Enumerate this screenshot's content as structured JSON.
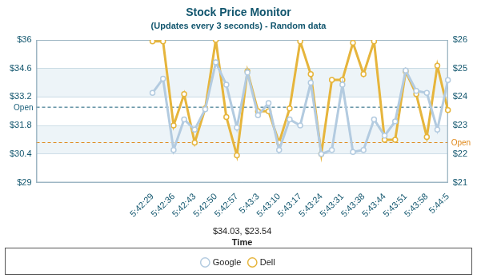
{
  "chart_data": {
    "type": "line",
    "title": "Stock Price Monitor",
    "subtitle": "(Updates every 3 seconds) - Random data",
    "x_label": "Time",
    "categories": [
      null,
      null,
      null,
      null,
      null,
      null,
      null,
      null,
      null,
      null,
      null,
      "5:42:29",
      null,
      "5:42:36",
      null,
      "5:42:43",
      null,
      "5:42:50",
      null,
      "5:42:57",
      null,
      "5:43:3",
      null,
      "5:43:10",
      null,
      "5:43:17",
      null,
      "5:43:24",
      null,
      "5:43:31",
      null,
      "5:43:38",
      null,
      "5:43:44",
      null,
      "5:43:51",
      null,
      "5:43:58",
      null,
      "5:44:5"
    ],
    "series": [
      {
        "name": "Google",
        "color": "#b3cbe0",
        "marker": "circle",
        "values": [
          null,
          null,
          null,
          null,
          null,
          null,
          null,
          null,
          null,
          null,
          null,
          33.4,
          34.1,
          30.6,
          32.1,
          31.6,
          32.6,
          34.9,
          33.8,
          31.7,
          34.4,
          32.3,
          32.9,
          30.6,
          32.1,
          31.8,
          33.9,
          30.4,
          30.6,
          33.8,
          30.5,
          30.6,
          32.1,
          31.3,
          32.0,
          34.5,
          33.5,
          33.4,
          31.6,
          34.03
        ]
      },
      {
        "name": "Dell",
        "color": "#e6b53c",
        "marker": "circle",
        "axis": "y2",
        "values": [
          null,
          null,
          null,
          null,
          null,
          null,
          null,
          null,
          null,
          null,
          null,
          25.95,
          25.95,
          23.0,
          24.1,
          22.4,
          23.6,
          26.0,
          23.3,
          21.95,
          24.9,
          23.5,
          23.5,
          22.4,
          23.6,
          25.95,
          24.8,
          22.0,
          24.6,
          24.6,
          25.9,
          24.8,
          25.95,
          22.5,
          22.5,
          24.9,
          24.1,
          22.6,
          25.1,
          23.54
        ]
      }
    ],
    "ylim": [
      29,
      36
    ],
    "yticks": [
      {
        "value": 29,
        "label": "$29"
      },
      {
        "value": 30.4,
        "label": "$30.4"
      },
      {
        "value": 31.8,
        "label": "$31.8"
      },
      {
        "value": 33.2,
        "label": "$33.2"
      },
      {
        "value": 34.6,
        "label": "$34.6"
      },
      {
        "value": 36,
        "label": "$36"
      }
    ],
    "y2lim": [
      21,
      26
    ],
    "y2ticks": [
      {
        "value": 21,
        "label": "$21"
      },
      {
        "value": 22,
        "label": "$22"
      },
      {
        "value": 23,
        "label": "$23"
      },
      {
        "value": 24,
        "label": "$24"
      },
      {
        "value": 25,
        "label": "$25"
      },
      {
        "value": 26,
        "label": "$26"
      }
    ],
    "grid": true,
    "legend": "bottom",
    "annotations": [
      {
        "text": "Open",
        "value": 32.7,
        "axis": "y",
        "color": "#1a5f7a",
        "line_style": "dashed"
      },
      {
        "text": "Open",
        "value": 22.4,
        "axis": "y2",
        "color": "#e08a1e",
        "line_style": "dashed"
      },
      {
        "text": "$34.03, $23.54"
      }
    ]
  }
}
